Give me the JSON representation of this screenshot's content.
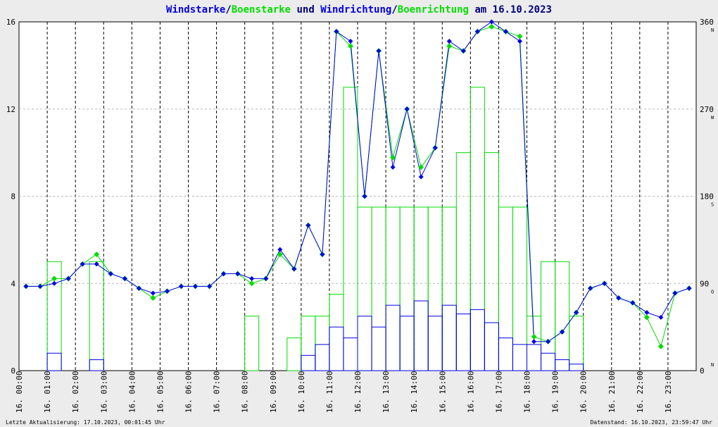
{
  "title": {
    "part1": "Windstarke",
    "sep1": "/",
    "part2": "Boenstarke",
    "part3": " und ",
    "part4": "Windrichtung",
    "sep2": "/",
    "part5": "Boenrichtung",
    "part6": " am 16.10.2023"
  },
  "colors": {
    "wind": "#0000e6",
    "gust": "#00dd00",
    "title_dark": "#00007a",
    "grid": "#000000",
    "background": "#ececec"
  },
  "footer": {
    "left": "Letzte Aktualisierung: 17.10.2023, 00:01:45 Uhr",
    "right": "Datenstand: 16.10.2023, 23:59:47 Uhr"
  },
  "chart_data": {
    "type": "line",
    "x_unit": "hour",
    "xlim": [
      0,
      24
    ],
    "ylim": [
      0,
      16
    ],
    "y2lim": [
      0,
      360
    ],
    "x_tick_labels": [
      "16. 00:00",
      "16. 01:00",
      "16. 02:00",
      "16. 03:00",
      "16. 04:00",
      "16. 05:00",
      "16. 06:00",
      "16. 07:00",
      "16. 08:00",
      "16. 09:00",
      "16. 10:00",
      "16. 11:00",
      "16. 12:00",
      "16. 13:00",
      "16. 14:00",
      "16. 15:00",
      "16. 16:00",
      "16. 17:00",
      "16. 18:00",
      "16. 19:00",
      "16. 20:00",
      "16. 21:00",
      "16. 22:00",
      "16. 23:00"
    ],
    "y_tick_labels": [
      "0",
      "4",
      "8",
      "12",
      "16"
    ],
    "y2_tick_labels": [
      "0",
      "90",
      "180",
      "270",
      "360"
    ],
    "y2_direction_labels": [
      "N",
      "O",
      "S",
      "W",
      "N"
    ],
    "grid": true,
    "series": [
      {
        "name": "Windstarke",
        "x": [
          0,
          0.5,
          1,
          1.5,
          2,
          2.5,
          3,
          3.5,
          4,
          4.5,
          5,
          5.5,
          6,
          6.5,
          7,
          7.5,
          8,
          8.5,
          9,
          9.5,
          10,
          10.5,
          11,
          11.5,
          12,
          12.5,
          13,
          13.5,
          14,
          14.5,
          15,
          15.5,
          16,
          16.5,
          17,
          17.5,
          18,
          18.5,
          19,
          19.5,
          20,
          20.5,
          21,
          21.5,
          22,
          22.5,
          23,
          23.5
        ],
        "values": [
          0,
          0,
          0.8,
          0,
          0,
          0.5,
          0,
          0,
          0,
          0,
          0,
          0,
          0,
          0,
          0,
          0,
          0,
          0,
          0,
          0,
          0.7,
          1.2,
          2,
          1.5,
          2.5,
          2,
          3,
          2.5,
          3.2,
          2.5,
          3,
          2.6,
          2.8,
          2.2,
          1.5,
          1.2,
          1.2,
          0.8,
          0.5,
          0.3,
          0,
          0,
          0,
          0,
          0,
          0,
          0,
          0
        ]
      },
      {
        "name": "Boenstarke",
        "x": [
          0,
          0.5,
          1,
          1.5,
          2,
          2.5,
          3,
          3.5,
          4,
          4.5,
          5,
          5.5,
          6,
          6.5,
          7,
          7.5,
          8,
          8.5,
          9,
          9.5,
          10,
          10.5,
          11,
          11.5,
          12,
          12.5,
          13,
          13.5,
          14,
          14.5,
          15,
          15.5,
          16,
          16.5,
          17,
          17.5,
          18,
          18.5,
          19,
          19.5,
          20,
          20.5,
          21,
          21.5,
          22,
          22.5,
          23,
          23.5
        ],
        "values": [
          0,
          0,
          5,
          0,
          0,
          5,
          0,
          0,
          0,
          0,
          0,
          0,
          0,
          0,
          0,
          0,
          2.5,
          0,
          0,
          1.5,
          2.5,
          2.5,
          3.5,
          13,
          7.5,
          7.5,
          7.5,
          7.5,
          7.5,
          7.5,
          7.5,
          10,
          13,
          10,
          7.5,
          7.5,
          2.5,
          5,
          5,
          2.5,
          0,
          0,
          0,
          0,
          0,
          0,
          0,
          0
        ]
      },
      {
        "name": "Windrichtung",
        "x": [
          0,
          0.5,
          1,
          1.5,
          2,
          2.5,
          3,
          3.5,
          4,
          4.5,
          5,
          5.5,
          6,
          6.5,
          7,
          7.5,
          8,
          8.5,
          9,
          9.5,
          10,
          10.5,
          11,
          11.5,
          12,
          12.5,
          13,
          13.5,
          14,
          14.5,
          15,
          15.5,
          16,
          16.5,
          17,
          17.5,
          18,
          18.5,
          19,
          19.5,
          20,
          20.5,
          21,
          21.5,
          22,
          22.5,
          23,
          23.5
        ],
        "values": [
          87,
          87,
          90,
          95,
          110,
          110,
          100,
          95,
          85,
          80,
          82,
          87,
          87,
          87,
          100,
          100,
          95,
          95,
          125,
          105,
          150,
          120,
          350,
          340,
          180,
          330,
          210,
          270,
          200,
          230,
          340,
          330,
          350,
          360,
          350,
          340,
          30,
          30,
          40,
          60,
          85,
          90,
          75,
          70,
          60,
          55,
          80,
          85
        ]
      },
      {
        "name": "Boenrichtung",
        "x": [
          0,
          0.5,
          1,
          1.5,
          2,
          2.5,
          3,
          3.5,
          4,
          4.5,
          5,
          5.5,
          6,
          6.5,
          7,
          7.5,
          8,
          8.5,
          9,
          9.5,
          10,
          10.5,
          11,
          11.5,
          12,
          12.5,
          13,
          13.5,
          14,
          14.5,
          15,
          15.5,
          16,
          16.5,
          17,
          17.5,
          18,
          18.5,
          19,
          19.5,
          20,
          20.5,
          21,
          21.5,
          22,
          22.5,
          23,
          23.5
        ],
        "values": [
          87,
          87,
          95,
          95,
          110,
          120,
          100,
          95,
          85,
          75,
          82,
          87,
          87,
          87,
          100,
          100,
          90,
          95,
          120,
          105,
          150,
          120,
          350,
          335,
          180,
          330,
          220,
          270,
          210,
          230,
          335,
          330,
          350,
          355,
          350,
          345,
          35,
          30,
          40,
          60,
          85,
          90,
          75,
          70,
          55,
          25,
          80,
          85
        ]
      }
    ],
    "legend_position": "title"
  }
}
